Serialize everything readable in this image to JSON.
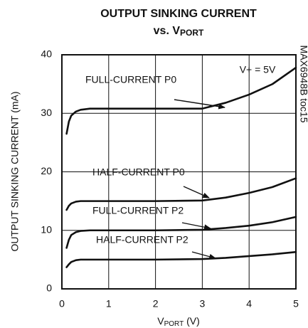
{
  "chart_data": {
    "type": "line",
    "title": "OUTPUT SINKING CURRENT",
    "subtitle": {
      "prefix": "vs. V",
      "subscript": "PORT"
    },
    "x_label": {
      "prefix": "V",
      "subscript": "PORT",
      "suffix": " (V)"
    },
    "y_label": "OUTPUT SINKING CURRENT (mA)",
    "annotations": [
      "V+ = 5V",
      "MAX6948B toc15"
    ],
    "x": [
      0.1,
      0.15,
      0.2,
      0.3,
      0.4,
      0.6,
      1,
      2,
      3,
      3.5,
      4,
      4.5,
      5
    ],
    "series": [
      {
        "name": "FULL-CURRENT P0",
        "color": "#111111",
        "values": [
          26.5,
          28.6,
          29.6,
          30.3,
          30.6,
          30.8,
          30.8,
          30.8,
          30.8,
          31.8,
          33.2,
          35,
          37.8
        ]
      },
      {
        "name": "HALF-CURRENT P0",
        "color": "#111111",
        "values": [
          13.5,
          14.2,
          14.6,
          14.9,
          15,
          15,
          15,
          15,
          15.1,
          15.6,
          16.4,
          17.4,
          18.9
        ]
      },
      {
        "name": "FULL-CURRENT P2",
        "color": "#111111",
        "values": [
          7,
          8.4,
          9.2,
          9.7,
          9.9,
          10,
          10,
          10,
          10.1,
          10.4,
          10.8,
          11.4,
          12.3
        ]
      },
      {
        "name": "HALF-CURRENT P2",
        "color": "#111111",
        "values": [
          3.7,
          4.2,
          4.6,
          4.9,
          5,
          5,
          5,
          5,
          5.1,
          5.3,
          5.6,
          5.9,
          6.3
        ]
      }
    ],
    "xlim": [
      0,
      5
    ],
    "xticks": [
      0,
      1,
      2,
      3,
      4,
      5
    ],
    "ylim": [
      0,
      40
    ],
    "yticks": [
      0,
      10,
      20,
      30,
      40
    ],
    "grid": true
  }
}
